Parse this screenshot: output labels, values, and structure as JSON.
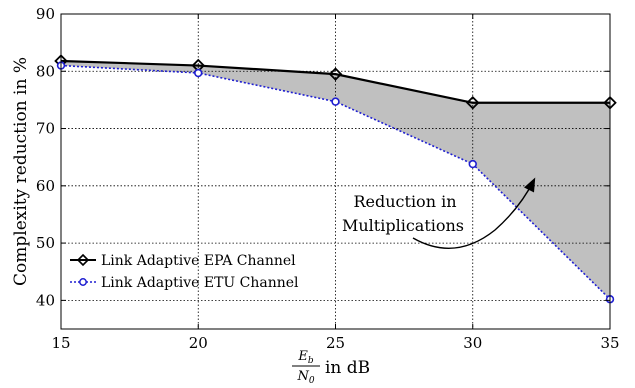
{
  "chart_data": {
    "type": "line",
    "x": [
      15,
      20,
      25,
      30,
      35
    ],
    "series": [
      {
        "name": "Link Adaptive EPA Channel",
        "x": [
          15,
          20,
          25,
          30,
          35
        ],
        "values": [
          81.8,
          81.0,
          79.5,
          74.5,
          74.5
        ],
        "color": "#000000",
        "marker": "diamond",
        "dash": "solid"
      },
      {
        "name": "Link Adaptive ETU Channel",
        "x": [
          15,
          20,
          25,
          30,
          35
        ],
        "values": [
          81.0,
          79.7,
          74.7,
          63.8,
          40.2
        ],
        "color": "#1f1fd0",
        "marker": "circle",
        "dash": "dotted"
      }
    ],
    "xlabel_frac_num": "E",
    "xlabel_frac_num_sub": "b",
    "xlabel_frac_den": "N",
    "xlabel_frac_den_sub": "0",
    "xlabel_suffix": "in dB",
    "ylabel": "Complexity reduction in %",
    "xlim": [
      15,
      35
    ],
    "ylim": [
      35,
      90
    ],
    "xticks": [
      15,
      20,
      25,
      30,
      35
    ],
    "yticks": [
      40,
      50,
      60,
      70,
      80,
      90
    ],
    "grid": true,
    "legend_position": "lower-left",
    "fill_between": {
      "color": "#c0c0c0"
    },
    "annotation": {
      "line1": "Reduction in",
      "line2": "Multiplications"
    }
  }
}
